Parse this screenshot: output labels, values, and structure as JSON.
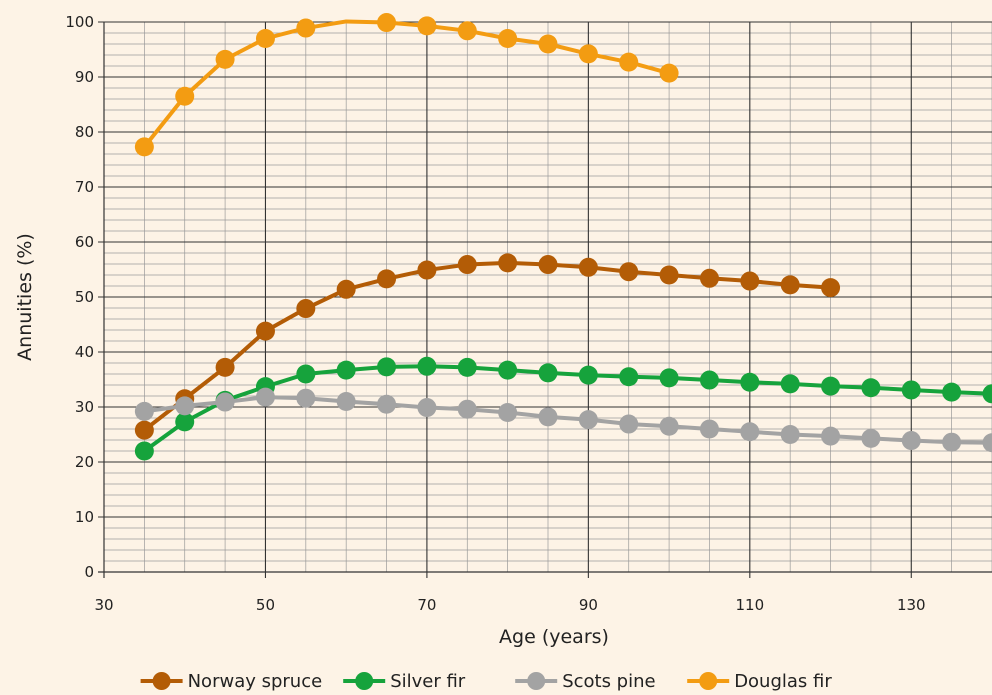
{
  "chart_data": {
    "type": "line",
    "title": "",
    "xlabel": "Age (years)",
    "ylabel": "Annuities (%)",
    "xlim": [
      30,
      140
    ],
    "ylim": [
      0,
      100
    ],
    "x_ticks": [
      30,
      50,
      70,
      90,
      110,
      130
    ],
    "y_ticks": [
      0,
      10,
      20,
      30,
      40,
      50,
      60,
      70,
      80,
      90,
      100
    ],
    "x_minor_step": 5,
    "y_minor_step": 2,
    "grid": true,
    "legend_position": "bottom",
    "series": [
      {
        "name": "Norway spruce",
        "color": "#b35c06",
        "x": [
          35,
          40,
          45,
          50,
          55,
          60,
          65,
          70,
          75,
          80,
          85,
          90,
          95,
          100,
          105,
          110,
          115,
          120
        ],
        "y": [
          25.8,
          31.5,
          37.2,
          43.8,
          47.9,
          51.4,
          53.3,
          54.9,
          55.9,
          56.2,
          55.9,
          55.4,
          54.6,
          54.0,
          53.4,
          52.9,
          52.2,
          51.7
        ]
      },
      {
        "name": "Silver fir",
        "color": "#16a33c",
        "x": [
          35,
          40,
          45,
          50,
          55,
          60,
          65,
          70,
          75,
          80,
          85,
          90,
          95,
          100,
          105,
          110,
          115,
          120,
          125,
          130,
          135,
          140
        ],
        "y": [
          22.0,
          27.3,
          31.2,
          33.7,
          36.0,
          36.7,
          37.3,
          37.4,
          37.2,
          36.7,
          36.2,
          35.8,
          35.5,
          35.3,
          34.9,
          34.5,
          34.2,
          33.8,
          33.5,
          33.1,
          32.7,
          32.4
        ]
      },
      {
        "name": "Scots pine",
        "color": "#a3a3a3",
        "x": [
          35,
          40,
          45,
          50,
          55,
          60,
          65,
          70,
          75,
          80,
          85,
          90,
          95,
          100,
          105,
          110,
          115,
          120,
          125,
          130,
          135,
          140
        ],
        "y": [
          29.2,
          30.2,
          30.9,
          31.8,
          31.6,
          31.0,
          30.5,
          29.9,
          29.6,
          29.0,
          28.2,
          27.7,
          26.9,
          26.5,
          26.0,
          25.5,
          25.0,
          24.7,
          24.3,
          23.9,
          23.6,
          23.5
        ]
      },
      {
        "name": "Douglas fir",
        "color": "#f39c12",
        "x": [
          35,
          40,
          45,
          50,
          55,
          60,
          65,
          70,
          75,
          80,
          85,
          90,
          95,
          100
        ],
        "y": [
          77.3,
          86.5,
          93.2,
          97.0,
          98.9,
          100.1,
          99.9,
          99.3,
          98.4,
          97.0,
          96.0,
          94.2,
          92.7,
          90.7
        ],
        "hollow_points": [
          60
        ]
      }
    ]
  }
}
